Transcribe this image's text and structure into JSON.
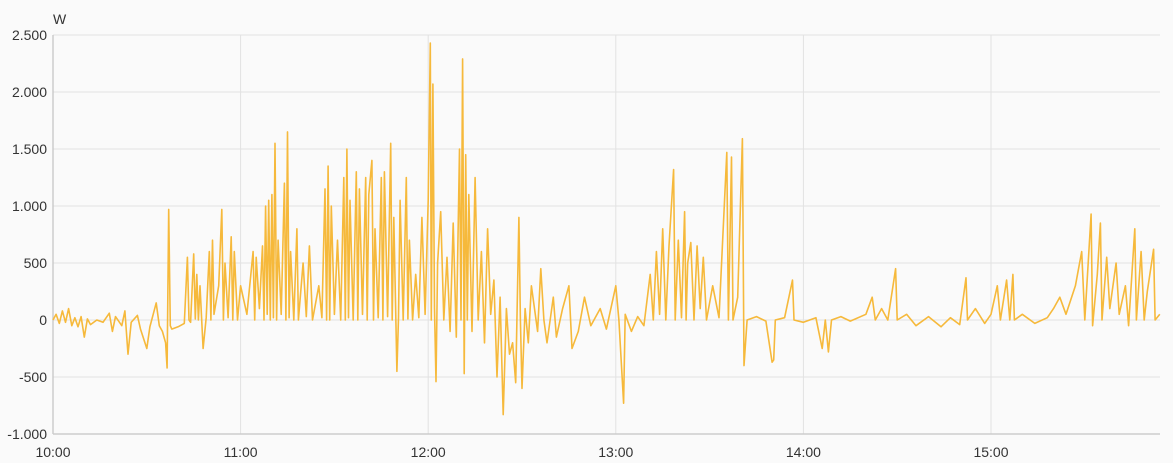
{
  "chart_data": {
    "type": "line",
    "title": "",
    "xlabel": "",
    "ylabel": "W",
    "ylim": [
      -1000,
      2500
    ],
    "xlim": [
      "10:00",
      "15:54"
    ],
    "yticks": [
      2500,
      2000,
      1500,
      1000,
      500,
      0,
      -500,
      -1000
    ],
    "ytick_labels": [
      "2.500",
      "2.000",
      "1.500",
      "1.000",
      "500",
      "0",
      "-500",
      "-1.000"
    ],
    "xticks": [
      "10:00",
      "11:00",
      "12:00",
      "13:00",
      "14:00",
      "15:00"
    ],
    "grid": true,
    "legend": "none",
    "colors": {
      "line": "#f6b93b",
      "grid": "#e2e2e2",
      "axis": "#cccccc",
      "background": "#fafafa"
    },
    "series": [
      {
        "points": [
          [
            "10:00",
            0
          ],
          [
            "10:01",
            50
          ],
          [
            "10:02",
            -30
          ],
          [
            "10:03",
            80
          ],
          [
            "10:04",
            -20
          ],
          [
            "10:05",
            100
          ],
          [
            "10:06",
            -50
          ],
          [
            "10:07",
            20
          ],
          [
            "10:08",
            -60
          ],
          [
            "10:09",
            30
          ],
          [
            "10:10",
            -150
          ],
          [
            "10:11",
            10
          ],
          [
            "10:12",
            -40
          ],
          [
            "10:14",
            0
          ],
          [
            "10:16",
            -20
          ],
          [
            "10:18",
            60
          ],
          [
            "10:19",
            -100
          ],
          [
            "10:20",
            30
          ],
          [
            "10:22",
            -50
          ],
          [
            "10:23",
            80
          ],
          [
            "10:24",
            -300
          ],
          [
            "10:25",
            -20
          ],
          [
            "10:27",
            40
          ],
          [
            "10:28",
            -80
          ],
          [
            "10:30",
            -250
          ],
          [
            "10:31",
            -60
          ],
          [
            "10:33",
            150
          ],
          [
            "10:34",
            -50
          ],
          [
            "10:35",
            -100
          ],
          [
            "10:36",
            -200
          ],
          [
            "10:36:30",
            -420
          ],
          [
            "10:37",
            970
          ],
          [
            "10:37:30",
            -50
          ],
          [
            "10:38",
            -80
          ],
          [
            "10:40",
            -60
          ],
          [
            "10:42",
            -30
          ],
          [
            "10:43",
            550
          ],
          [
            "10:43:30",
            0
          ],
          [
            "10:44",
            -20
          ],
          [
            "10:45",
            580
          ],
          [
            "10:45:30",
            10
          ],
          [
            "10:46",
            400
          ],
          [
            "10:46:30",
            0
          ],
          [
            "10:47",
            300
          ],
          [
            "10:48",
            -250
          ],
          [
            "10:49",
            20
          ],
          [
            "10:50",
            600
          ],
          [
            "10:50:30",
            0
          ],
          [
            "10:51",
            700
          ],
          [
            "10:51:30",
            50
          ],
          [
            "10:53",
            300
          ],
          [
            "10:54",
            970
          ],
          [
            "10:54:30",
            0
          ],
          [
            "10:55",
            500
          ],
          [
            "10:56",
            20
          ],
          [
            "10:57",
            730
          ],
          [
            "10:57:30",
            0
          ],
          [
            "10:58",
            600
          ],
          [
            "10:59",
            0
          ],
          [
            "11:00",
            300
          ],
          [
            "11:02",
            50
          ],
          [
            "11:04",
            600
          ],
          [
            "11:04:30",
            0
          ],
          [
            "11:05",
            550
          ],
          [
            "11:06",
            100
          ],
          [
            "11:07",
            650
          ],
          [
            "11:07:30",
            0
          ],
          [
            "11:08",
            1000
          ],
          [
            "11:08:30",
            50
          ],
          [
            "11:09",
            1050
          ],
          [
            "11:09:30",
            0
          ],
          [
            "11:10",
            1100
          ],
          [
            "11:10:30",
            20
          ],
          [
            "11:11",
            1550
          ],
          [
            "11:11:30",
            0
          ],
          [
            "11:12",
            700
          ],
          [
            "11:13",
            50
          ],
          [
            "11:14",
            1200
          ],
          [
            "11:14:30",
            0
          ],
          [
            "11:15",
            1650
          ],
          [
            "11:15:30",
            20
          ],
          [
            "11:16",
            600
          ],
          [
            "11:17",
            0
          ],
          [
            "11:18",
            800
          ],
          [
            "11:18:30",
            0
          ],
          [
            "11:20",
            500
          ],
          [
            "11:21",
            30
          ],
          [
            "11:22",
            650
          ],
          [
            "11:23",
            0
          ],
          [
            "11:25",
            300
          ],
          [
            "11:26",
            20
          ],
          [
            "11:27",
            1150
          ],
          [
            "11:27:30",
            0
          ],
          [
            "11:28",
            1350
          ],
          [
            "11:28:30",
            0
          ],
          [
            "11:29",
            1000
          ],
          [
            "11:30",
            50
          ],
          [
            "11:31",
            700
          ],
          [
            "11:32",
            0
          ],
          [
            "11:33",
            1250
          ],
          [
            "11:33:30",
            0
          ],
          [
            "11:34",
            1500
          ],
          [
            "11:34:30",
            20
          ],
          [
            "11:35",
            1050
          ],
          [
            "11:36",
            0
          ],
          [
            "11:37",
            1300
          ],
          [
            "11:37:30",
            0
          ],
          [
            "11:38",
            1150
          ],
          [
            "11:39",
            50
          ],
          [
            "11:40",
            1250
          ],
          [
            "11:40:30",
            0
          ],
          [
            "11:41",
            1100
          ],
          [
            "11:42",
            1400
          ],
          [
            "11:42:30",
            0
          ],
          [
            "11:43",
            800
          ],
          [
            "11:44",
            20
          ],
          [
            "11:45",
            1250
          ],
          [
            "11:45:30",
            0
          ],
          [
            "11:46",
            1300
          ],
          [
            "11:47",
            30
          ],
          [
            "11:48",
            1550
          ],
          [
            "11:48:30",
            0
          ],
          [
            "11:49",
            900
          ],
          [
            "11:50",
            -450
          ],
          [
            "11:50:30",
            20
          ],
          [
            "11:51",
            1050
          ],
          [
            "11:52",
            0
          ],
          [
            "11:53",
            1250
          ],
          [
            "11:53:30",
            10
          ],
          [
            "11:54",
            700
          ],
          [
            "11:55",
            0
          ],
          [
            "11:56",
            400
          ],
          [
            "11:57",
            20
          ],
          [
            "11:58",
            900
          ],
          [
            "11:59",
            50
          ],
          [
            "12:00",
            1050
          ],
          [
            "12:00:40",
            2430
          ],
          [
            "12:01",
            0
          ],
          [
            "12:01:30",
            2070
          ],
          [
            "12:02",
            100
          ],
          [
            "12:02:30",
            -540
          ],
          [
            "12:03",
            500
          ],
          [
            "12:04",
            950
          ],
          [
            "12:05",
            0
          ],
          [
            "12:06",
            550
          ],
          [
            "12:07",
            -100
          ],
          [
            "12:08",
            850
          ],
          [
            "12:09",
            -150
          ],
          [
            "12:10",
            1500
          ],
          [
            "12:10:30",
            0
          ],
          [
            "12:11",
            2290
          ],
          [
            "12:11:30",
            -470
          ],
          [
            "12:12",
            1450
          ],
          [
            "12:12:30",
            0
          ],
          [
            "12:13",
            1100
          ],
          [
            "12:14",
            -100
          ],
          [
            "12:15",
            1250
          ],
          [
            "12:16",
            0
          ],
          [
            "12:17",
            600
          ],
          [
            "12:18",
            -200
          ],
          [
            "12:19",
            800
          ],
          [
            "12:20",
            50
          ],
          [
            "12:21",
            350
          ],
          [
            "12:22",
            -500
          ],
          [
            "12:23",
            200
          ],
          [
            "12:24",
            -830
          ],
          [
            "12:25",
            100
          ],
          [
            "12:26",
            -300
          ],
          [
            "12:27",
            -200
          ],
          [
            "12:28",
            -550
          ],
          [
            "12:29",
            900
          ],
          [
            "12:29:30",
            0
          ],
          [
            "12:30",
            -600
          ],
          [
            "12:31",
            100
          ],
          [
            "12:32",
            -200
          ],
          [
            "12:33",
            300
          ],
          [
            "12:35",
            -100
          ],
          [
            "12:36",
            450
          ],
          [
            "12:37",
            0
          ],
          [
            "12:38",
            -200
          ],
          [
            "12:40",
            200
          ],
          [
            "12:41",
            -150
          ],
          [
            "12:43",
            100
          ],
          [
            "12:45",
            300
          ],
          [
            "12:46",
            -250
          ],
          [
            "12:48",
            -100
          ],
          [
            "12:50",
            200
          ],
          [
            "12:52",
            -50
          ],
          [
            "12:55",
            100
          ],
          [
            "12:57",
            -80
          ],
          [
            "13:00",
            300
          ],
          [
            "13:01",
            0
          ],
          [
            "13:02:30",
            -730
          ],
          [
            "13:03",
            50
          ],
          [
            "13:05",
            -100
          ],
          [
            "13:07",
            30
          ],
          [
            "13:09",
            -50
          ],
          [
            "13:11",
            400
          ],
          [
            "13:12",
            0
          ],
          [
            "13:13",
            600
          ],
          [
            "13:14",
            50
          ],
          [
            "13:15",
            800
          ],
          [
            "13:16",
            0
          ],
          [
            "13:17",
            650
          ],
          [
            "13:18:30",
            1320
          ],
          [
            "13:19",
            0
          ],
          [
            "13:20",
            700
          ],
          [
            "13:21",
            20
          ],
          [
            "13:22",
            950
          ],
          [
            "13:22:30",
            0
          ],
          [
            "13:23",
            500
          ],
          [
            "13:24",
            680
          ],
          [
            "13:25",
            0
          ],
          [
            "13:26",
            650
          ],
          [
            "13:27",
            100
          ],
          [
            "13:28",
            550
          ],
          [
            "13:29",
            0
          ],
          [
            "13:31",
            300
          ],
          [
            "13:33",
            20
          ],
          [
            "13:35:30",
            1470
          ],
          [
            "13:36",
            0
          ],
          [
            "13:37",
            1430
          ],
          [
            "13:37:30",
            0
          ],
          [
            "13:39",
            200
          ],
          [
            "13:40:30",
            1590
          ],
          [
            "13:41",
            -400
          ],
          [
            "13:42",
            0
          ],
          [
            "13:45",
            30
          ],
          [
            "13:48",
            -10
          ],
          [
            "13:50",
            -370
          ],
          [
            "13:50:30",
            -350
          ],
          [
            "13:51",
            0
          ],
          [
            "13:54",
            20
          ],
          [
            "13:56:30",
            350
          ],
          [
            "13:57",
            0
          ],
          [
            "14:00",
            -20
          ],
          [
            "14:04",
            20
          ],
          [
            "14:06",
            -250
          ],
          [
            "14:07",
            0
          ],
          [
            "14:08",
            -280
          ],
          [
            "14:09",
            0
          ],
          [
            "14:12",
            30
          ],
          [
            "14:15",
            -10
          ],
          [
            "14:20",
            50
          ],
          [
            "14:22",
            200
          ],
          [
            "14:23",
            0
          ],
          [
            "14:25",
            100
          ],
          [
            "14:27",
            0
          ],
          [
            "14:29:30",
            450
          ],
          [
            "14:30",
            0
          ],
          [
            "14:33",
            50
          ],
          [
            "14:36",
            -50
          ],
          [
            "14:40",
            30
          ],
          [
            "14:44",
            -60
          ],
          [
            "14:47",
            20
          ],
          [
            "14:50",
            -40
          ],
          [
            "14:52",
            370
          ],
          [
            "14:52:30",
            0
          ],
          [
            "14:55",
            100
          ],
          [
            "14:58",
            -30
          ],
          [
            "15:00",
            50
          ],
          [
            "15:02",
            300
          ],
          [
            "15:03",
            0
          ],
          [
            "15:05",
            350
          ],
          [
            "15:06",
            0
          ],
          [
            "15:07",
            400
          ],
          [
            "15:07:30",
            0
          ],
          [
            "15:10",
            50
          ],
          [
            "15:14",
            -30
          ],
          [
            "15:18",
            20
          ],
          [
            "15:20",
            100
          ],
          [
            "15:22",
            200
          ],
          [
            "15:24",
            50
          ],
          [
            "15:27",
            300
          ],
          [
            "15:29",
            600
          ],
          [
            "15:30",
            0
          ],
          [
            "15:32",
            930
          ],
          [
            "15:32:30",
            -50
          ],
          [
            "15:34",
            400
          ],
          [
            "15:35",
            850
          ],
          [
            "15:35:30",
            0
          ],
          [
            "15:37",
            550
          ],
          [
            "15:38",
            100
          ],
          [
            "15:40",
            500
          ],
          [
            "15:41",
            50
          ],
          [
            "15:43",
            300
          ],
          [
            "15:44",
            -50
          ],
          [
            "15:46",
            800
          ],
          [
            "15:46:30",
            0
          ],
          [
            "15:48",
            600
          ],
          [
            "15:49",
            0
          ],
          [
            "15:50",
            250
          ],
          [
            "15:52",
            620
          ],
          [
            "15:52:30",
            0
          ],
          [
            "15:54",
            50
          ]
        ]
      }
    ]
  }
}
